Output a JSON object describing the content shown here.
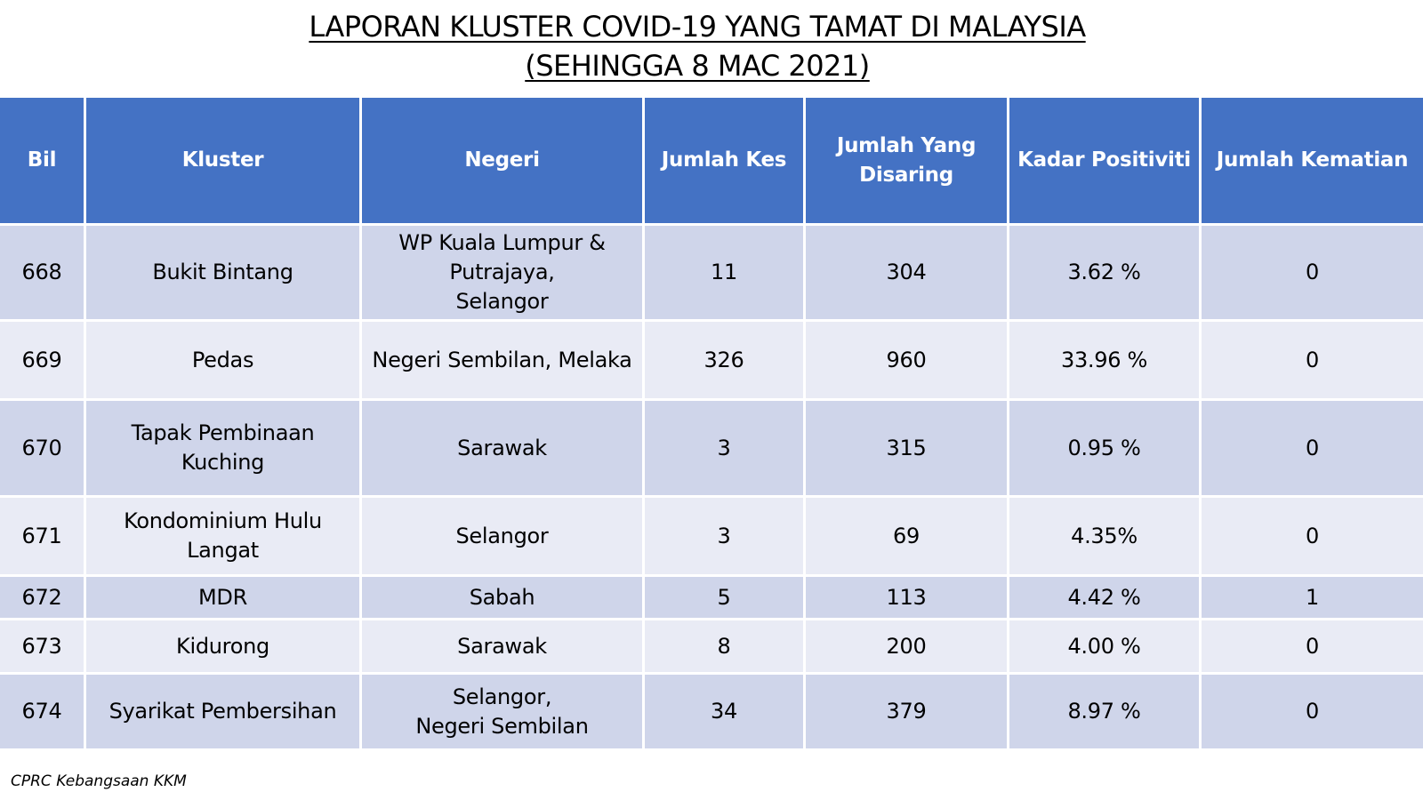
{
  "title_line1": "LAPORAN KLUSTER COVID-19 YANG TAMAT DI MALAYSIA",
  "title_line2": "(SEHINGGA 8 MAC 2021)",
  "headers": {
    "bil": "Bil",
    "kluster": "Kluster",
    "negeri": "Negeri",
    "jumlah_kes": "Jumlah Kes",
    "jumlah_disaring_line1": "Jumlah Yang",
    "jumlah_disaring_line2": "Disaring",
    "kadar_positiviti": "Kadar Positiviti",
    "jumlah_kematian": "Jumlah Kematian"
  },
  "rows": [
    {
      "bil": "668",
      "kluster": "Bukit Bintang",
      "negeri": [
        "WP Kuala Lumpur &",
        "Putrajaya,",
        "Selangor"
      ],
      "kes": "11",
      "disaring": "304",
      "positiviti": "3.62 %",
      "kematian": "0"
    },
    {
      "bil": "669",
      "kluster": "Pedas",
      "negeri": [
        "Negeri Sembilan, Melaka"
      ],
      "kes": "326",
      "disaring": "960",
      "positiviti": "33.96 %",
      "kematian": "0"
    },
    {
      "bil": "670",
      "kluster": "Tapak Pembinaan Kuching",
      "negeri": [
        "Sarawak"
      ],
      "kes": "3",
      "disaring": "315",
      "positiviti": "0.95 %",
      "kematian": "0"
    },
    {
      "bil": "671",
      "kluster": "Kondominium Hulu Langat",
      "negeri": [
        "Selangor"
      ],
      "kes": "3",
      "disaring": "69",
      "positiviti": "4.35%",
      "kematian": "0"
    },
    {
      "bil": "672",
      "kluster": "MDR",
      "negeri": [
        "Sabah"
      ],
      "kes": "5",
      "disaring": "113",
      "positiviti": "4.42 %",
      "kematian": "1"
    },
    {
      "bil": "673",
      "kluster": "Kidurong",
      "negeri": [
        "Sarawak"
      ],
      "kes": "8",
      "disaring": "200",
      "positiviti": "4.00 %",
      "kematian": "0"
    },
    {
      "bil": "674",
      "kluster": "Syarikat Pembersihan",
      "negeri": [
        "Selangor,",
        "Negeri Sembilan"
      ],
      "kes": "34",
      "disaring": "379",
      "positiviti": "8.97 %",
      "kematian": "0"
    }
  ],
  "footer": "CPRC Kebangsaan KKM",
  "colors": {
    "header_bg": "#4472c4",
    "row_odd_bg": "#cfd5ea",
    "row_even_bg": "#e9ebf5"
  }
}
